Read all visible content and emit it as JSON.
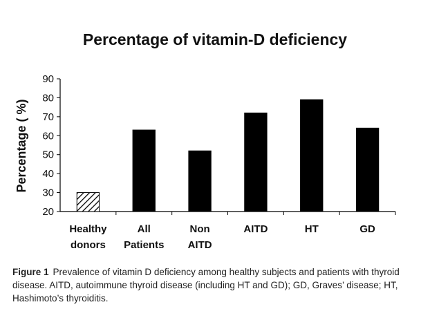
{
  "chart_data": {
    "type": "bar",
    "title": "Percentage of vitamin-D deficiency",
    "xlabel": "",
    "ylabel": "Percentage ( %)",
    "ylim": [
      20,
      90
    ],
    "yticks": [
      20,
      30,
      40,
      50,
      60,
      70,
      80,
      90
    ],
    "categories": [
      [
        "Healthy",
        "donors"
      ],
      [
        "All",
        "Patients"
      ],
      [
        "Non",
        "AITD"
      ],
      [
        "AITD"
      ],
      [
        "HT"
      ],
      [
        "GD"
      ]
    ],
    "values": [
      30,
      63,
      52,
      72,
      79,
      64
    ],
    "bar_styles": [
      "hatched",
      "solid",
      "solid",
      "solid",
      "solid",
      "solid"
    ],
    "bar_color": "#000000",
    "grid": false,
    "legend": "none"
  },
  "caption": {
    "label": "Figure 1",
    "text": "Prevalence of vitamin D deficiency among healthy subjects and patients with thyroid disease. AITD, autoimmune thyroid disease (including HT and GD); GD, Graves’ disease; HT, Hashimoto’s thyroiditis."
  }
}
